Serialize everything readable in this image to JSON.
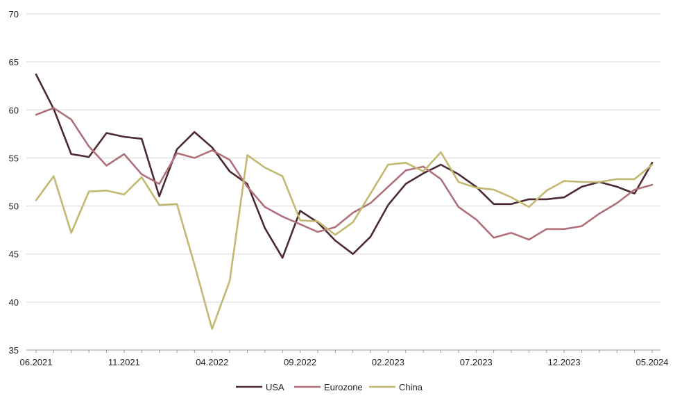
{
  "chart_data": {
    "type": "line",
    "title": "",
    "xlabel": "",
    "ylabel": "",
    "ylim": [
      35,
      70
    ],
    "yticks": [
      35,
      40,
      45,
      50,
      55,
      60,
      65,
      70
    ],
    "x_tick_labels": [
      "06.2021",
      "11.2021",
      "04.2022",
      "09.2022",
      "02.2023",
      "07.2023",
      "12.2023",
      "05.2024"
    ],
    "x_tick_positions": [
      0,
      5,
      10,
      15,
      20,
      25,
      30,
      35
    ],
    "x_count": 36,
    "grid": "horizontal",
    "legend_position": "bottom",
    "series": [
      {
        "name": "USA",
        "color": "#4a2a30",
        "values": [
          63.7,
          60.1,
          55.4,
          55.1,
          57.6,
          57.2,
          57.0,
          51.0,
          55.9,
          57.7,
          56.1,
          53.6,
          52.3,
          47.7,
          44.6,
          49.5,
          48.3,
          46.4,
          45.0,
          46.8,
          50.1,
          52.3,
          53.4,
          54.3,
          53.3,
          52.0,
          50.2,
          50.2,
          50.7,
          50.7,
          50.9,
          52.0,
          52.5,
          52.0,
          51.3,
          54.5
        ]
      },
      {
        "name": "Eurozone",
        "color": "#b0707a",
        "values": [
          59.5,
          60.2,
          59.0,
          56.2,
          54.2,
          55.4,
          53.3,
          52.3,
          55.5,
          55.0,
          55.8,
          54.8,
          52.0,
          49.9,
          48.9,
          48.1,
          47.3,
          47.8,
          49.3,
          50.3,
          52.0,
          53.7,
          54.1,
          52.8,
          49.9,
          48.6,
          46.7,
          47.2,
          46.5,
          47.6,
          47.6,
          47.9,
          49.2,
          50.3,
          51.7,
          52.2
        ]
      },
      {
        "name": "China",
        "color": "#c2b872",
        "values": [
          50.6,
          53.1,
          47.2,
          51.5,
          51.6,
          51.2,
          53.0,
          50.1,
          50.2,
          43.9,
          37.2,
          42.2,
          55.3,
          54.0,
          53.1,
          48.5,
          48.4,
          47.0,
          48.3,
          51.3,
          54.3,
          54.5,
          53.6,
          55.6,
          52.5,
          51.9,
          51.7,
          50.9,
          49.9,
          51.6,
          52.6,
          52.5,
          52.5,
          52.8,
          52.8,
          54.3
        ]
      }
    ]
  }
}
